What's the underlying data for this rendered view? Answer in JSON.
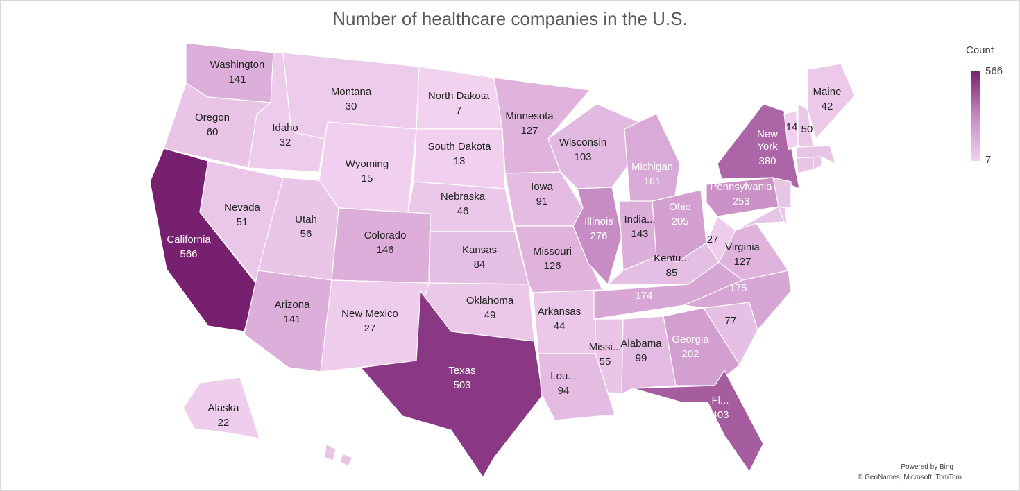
{
  "title": "Number of healthcare companies in the U.S.",
  "legend": {
    "title": "Count",
    "max": "566",
    "min": "7",
    "max_color": "#782070",
    "min_color": "#f1d2ef"
  },
  "attribution": {
    "line1": "Powered by Bing",
    "line2": "© GeoNames, Microsoft, TomTom"
  },
  "map_data": {
    "metric": "Count",
    "regions": [
      {
        "name": "Washington",
        "label": "Washington",
        "value": 141
      },
      {
        "name": "Oregon",
        "label": "Oregon",
        "value": 60
      },
      {
        "name": "California",
        "label": "California",
        "value": 566
      },
      {
        "name": "Idaho",
        "label": "Idaho",
        "value": 32
      },
      {
        "name": "Montana",
        "label": "Montana",
        "value": 30
      },
      {
        "name": "Nevada",
        "label": "Nevada",
        "value": 51
      },
      {
        "name": "Utah",
        "label": "Utah",
        "value": 56
      },
      {
        "name": "Wyoming",
        "label": "Wyoming",
        "value": 15
      },
      {
        "name": "Arizona",
        "label": "Arizona",
        "value": 141
      },
      {
        "name": "Colorado",
        "label": "Colorado",
        "value": 146
      },
      {
        "name": "New Mexico",
        "label": "New Mexico",
        "value": 27
      },
      {
        "name": "North Dakota",
        "label": "North Dakota",
        "value": 7
      },
      {
        "name": "South Dakota",
        "label": "South Dakota",
        "value": 13
      },
      {
        "name": "Nebraska",
        "label": "Nebraska",
        "value": 46
      },
      {
        "name": "Kansas",
        "label": "Kansas",
        "value": 84
      },
      {
        "name": "Oklahoma",
        "label": "Oklahoma",
        "value": 49
      },
      {
        "name": "Texas",
        "label": "Texas",
        "value": 503
      },
      {
        "name": "Minnesota",
        "label": "Minnesota",
        "value": 127
      },
      {
        "name": "Iowa",
        "label": "Iowa",
        "value": 91
      },
      {
        "name": "Missouri",
        "label": "Missouri",
        "value": 126
      },
      {
        "name": "Arkansas",
        "label": "Arkansas",
        "value": 44
      },
      {
        "name": "Louisiana",
        "label": "Lou...",
        "value": 94
      },
      {
        "name": "Wisconsin",
        "label": "Wisconsin",
        "value": 103
      },
      {
        "name": "Illinois",
        "label": "Illinois",
        "value": 276
      },
      {
        "name": "Michigan",
        "label": "Michigan",
        "value": 161
      },
      {
        "name": "Indiana",
        "label": "India...",
        "value": 143
      },
      {
        "name": "Ohio",
        "label": "Ohio",
        "value": 205
      },
      {
        "name": "Kentucky",
        "label": "Kentu...",
        "value": 85
      },
      {
        "name": "Tennessee",
        "label": "",
        "value": 174
      },
      {
        "name": "Mississippi",
        "label": "Missi...",
        "value": 55
      },
      {
        "name": "Alabama",
        "label": "Alabama",
        "value": 99
      },
      {
        "name": "Georgia",
        "label": "Georgia",
        "value": 202
      },
      {
        "name": "Florida",
        "label": "Fl...",
        "value": 403
      },
      {
        "name": "South Carolina",
        "label": "",
        "value": 77
      },
      {
        "name": "North Carolina",
        "label": "",
        "value": 175
      },
      {
        "name": "Virginia",
        "label": "Virginia",
        "value": 127
      },
      {
        "name": "West Virginia",
        "label": "",
        "value": 27
      },
      {
        "name": "Pennsylvania",
        "label": "Pennsylvania",
        "value": 253
      },
      {
        "name": "New York",
        "label": "New York",
        "value": 380
      },
      {
        "name": "Vermont",
        "label": "",
        "value": 14
      },
      {
        "name": "New Hampshire",
        "label": "",
        "value": 50
      },
      {
        "name": "Maine",
        "label": "Maine",
        "value": 42
      },
      {
        "name": "Alaska",
        "label": "Alaska",
        "value": 22
      },
      {
        "name": "Maryland",
        "label": null,
        "value": null
      },
      {
        "name": "Delaware",
        "label": null,
        "value": null
      },
      {
        "name": "New Jersey",
        "label": null,
        "value": null
      },
      {
        "name": "Connecticut",
        "label": null,
        "value": null
      },
      {
        "name": "Rhode Island",
        "label": null,
        "value": null
      },
      {
        "name": "Massachusetts",
        "label": null,
        "value": null
      },
      {
        "name": "Hawaii",
        "label": null,
        "value": null
      }
    ]
  }
}
